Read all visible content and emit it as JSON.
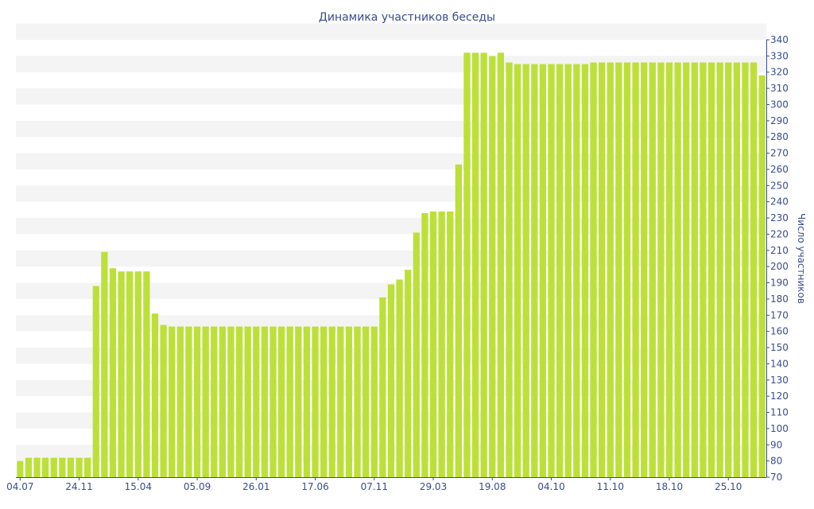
{
  "colors": {
    "bar": "#bde038",
    "text": "#3a4d8f",
    "stripe": "#f4f4f4",
    "axis": "#3a4d8f"
  },
  "chart_data": {
    "type": "bar",
    "title": "Динамика участников беседы",
    "ylabel": "Число участников",
    "xlabel": "",
    "ylim": [
      70,
      340
    ],
    "ytick_step": 10,
    "grid": "alternating-bands",
    "x_tick_labels": [
      {
        "index": 0,
        "label": "04.07"
      },
      {
        "index": 7,
        "label": "24.11"
      },
      {
        "index": 14,
        "label": "15.04"
      },
      {
        "index": 21,
        "label": "05.09"
      },
      {
        "index": 28,
        "label": "26.01"
      },
      {
        "index": 35,
        "label": "17.06"
      },
      {
        "index": 42,
        "label": "07.11"
      },
      {
        "index": 49,
        "label": "29.03"
      },
      {
        "index": 56,
        "label": "19.08"
      },
      {
        "index": 63,
        "label": "04.10"
      },
      {
        "index": 70,
        "label": "11.10"
      },
      {
        "index": 77,
        "label": "18.10"
      },
      {
        "index": 84,
        "label": "25.10"
      }
    ],
    "values": [
      80,
      82,
      82,
      82,
      82,
      82,
      82,
      82,
      82,
      188,
      209,
      199,
      197,
      197,
      197,
      197,
      171,
      164,
      163,
      163,
      163,
      163,
      163,
      163,
      163,
      163,
      163,
      163,
      163,
      163,
      163,
      163,
      163,
      163,
      163,
      163,
      163,
      163,
      163,
      163,
      163,
      163,
      163,
      181,
      189,
      192,
      198,
      221,
      233,
      234,
      234,
      234,
      263,
      332,
      332,
      332,
      330,
      332,
      326,
      325,
      325,
      325,
      325,
      325,
      325,
      325,
      325,
      325,
      326,
      326,
      326,
      326,
      326,
      326,
      326,
      326,
      326,
      326,
      326,
      326,
      326,
      326,
      326,
      326,
      326,
      326,
      326,
      326,
      318
    ]
  }
}
